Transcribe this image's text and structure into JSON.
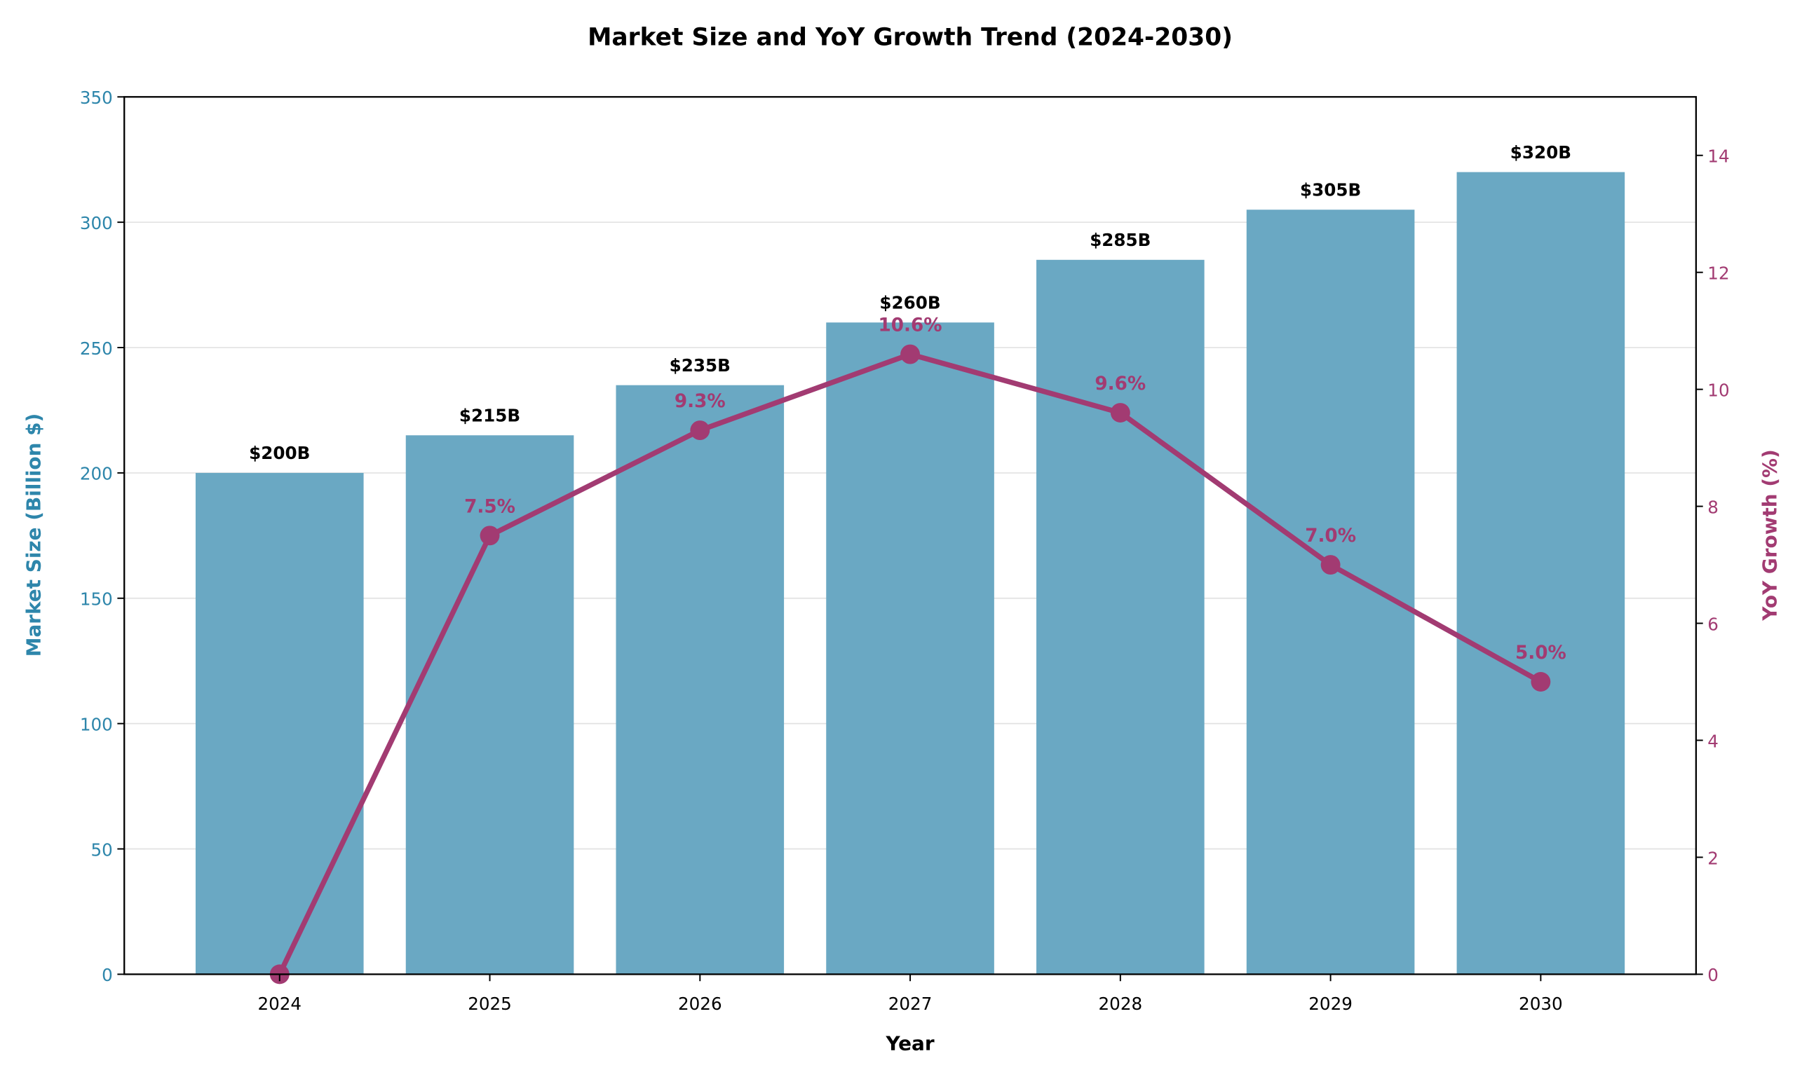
{
  "chart_data": {
    "type": "bar+line",
    "title": "Market Size and YoY Growth Trend (2024-2030)",
    "xlabel": "Year",
    "ylabel_left": "Market Size (Billion $)",
    "ylabel_right": "YoY Growth (%)",
    "categories": [
      "2024",
      "2025",
      "2026",
      "2027",
      "2028",
      "2029",
      "2030"
    ],
    "bars": {
      "values": [
        200,
        215,
        235,
        260,
        285,
        305,
        320
      ],
      "labels": [
        "$200B",
        "$215B",
        "$235B",
        "$260B",
        "$285B",
        "$305B",
        "$320B"
      ],
      "color": "#6aa8c3"
    },
    "line": {
      "values": [
        0,
        7.5,
        9.3,
        10.6,
        9.6,
        7.0,
        5.0
      ],
      "labels": [
        "",
        "7.5%",
        "9.3%",
        "10.6%",
        "9.6%",
        "7.0%",
        "5.0%"
      ],
      "color": "#a23b72"
    },
    "ylim_left": [
      0,
      350
    ],
    "ylim_right": [
      0,
      15
    ],
    "yticks_left": [
      "0",
      "50",
      "100",
      "150",
      "200",
      "250",
      "300",
      "350"
    ],
    "yticks_right": [
      "0",
      "2",
      "4",
      "6",
      "8",
      "10",
      "12",
      "14"
    ],
    "left_axis_color": "#2e86ab",
    "grid": true
  }
}
